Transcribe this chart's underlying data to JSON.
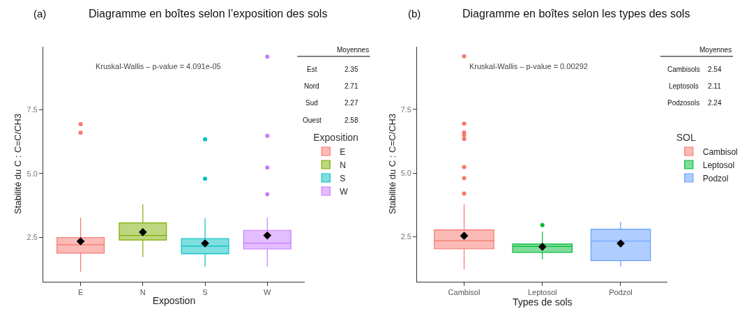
{
  "chart_data": [
    {
      "type": "box",
      "title": "Diagramme en boîtes selon l’exposition des sols",
      "xlabel": "Expostion",
      "ylabel": "Stabilité du C : C=C/CH3",
      "legend_title": "Exposition",
      "legend": "right",
      "categories": [
        "E",
        "N",
        "S",
        "W"
      ],
      "ylim": [
        0.78,
        9.98
      ],
      "yticks": [
        {
          "value": 2.5,
          "label": "2.5"
        },
        {
          "value": 5.0,
          "label": "5.0"
        },
        {
          "value": 7.5,
          "label": "7.5"
        }
      ],
      "series": [
        {
          "name": "E",
          "color": "#f8766d",
          "boxes": [
            {
              "low": 1.16,
              "q1": 1.89,
              "median": 2.22,
              "q3": 2.5,
              "high": 3.27,
              "mean": 2.35,
              "outliers": [
                6.94,
                6.6
              ]
            },
            null,
            null,
            null
          ]
        },
        {
          "name": "N",
          "color": "#7cae00",
          "boxes": [
            null,
            {
              "low": 1.73,
              "q1": 2.4,
              "median": 2.58,
              "q3": 3.07,
              "high": 3.8,
              "mean": 2.71
            },
            null,
            null
          ]
        },
        {
          "name": "S",
          "color": "#00bfc4",
          "boxes": [
            null,
            null,
            {
              "low": 1.36,
              "q1": 1.86,
              "median": 2.16,
              "q3": 2.46,
              "high": 3.25,
              "mean": 2.27,
              "outliers": [
                6.34,
                4.8
              ]
            },
            null
          ]
        },
        {
          "name": "W",
          "color": "#c77cff",
          "boxes": [
            null,
            null,
            null,
            {
              "low": 1.36,
              "q1": 2.05,
              "median": 2.28,
              "q3": 2.78,
              "high": 3.27,
              "mean": 2.58,
              "outliers": [
                9.58,
                6.48,
                5.24,
                4.19
              ]
            }
          ]
        }
      ],
      "annotations": [
        "(a)",
        "Kruskal-Wallis – p-value = 4.091e-05",
        "Moyennes",
        "Est",
        "2.35",
        "Nord",
        "2.71",
        "Sud",
        "2.27",
        "Ouest",
        "2.58"
      ]
    },
    {
      "type": "box",
      "title": "Diagramme en boîtes selon les types des sols",
      "xlabel": "Types de sols",
      "ylabel": "Stabilité du C : C=C/CH3",
      "legend_title": "SOL",
      "legend": "right",
      "categories": [
        "Cambisol",
        "Leptosol",
        "Podzol"
      ],
      "ylim": [
        0.75,
        9.97
      ],
      "yticks": [
        {
          "value": 2.5,
          "label": "2.5"
        },
        {
          "value": 5.0,
          "label": "5.0"
        },
        {
          "value": 7.5,
          "label": "7.5"
        }
      ],
      "series": [
        {
          "name": "Cambisol",
          "color": "#f8766d",
          "boxes": [
            {
              "low": 1.22,
              "q1": 2.03,
              "median": 2.34,
              "q3": 2.77,
              "high": 3.79,
              "mean": 2.54,
              "outliers": [
                9.58,
                6.94,
                6.59,
                6.48,
                6.34,
                5.24,
                4.8,
                4.2
              ]
            },
            null,
            null
          ]
        },
        {
          "name": "Leptosol",
          "color": "#00ba38",
          "boxes": [
            null,
            {
              "low": 1.62,
              "q1": 1.89,
              "median": 2.12,
              "q3": 2.22,
              "high": 2.7,
              "mean": 2.11,
              "outliers": [
                2.96
              ]
            },
            null
          ]
        },
        {
          "name": "Podzol",
          "color": "#619cff",
          "boxes": [
            null,
            null,
            {
              "low": 1.34,
              "q1": 1.57,
              "median": 2.33,
              "q3": 2.8,
              "high": 3.08,
              "mean": 2.24
            }
          ]
        }
      ],
      "annotations": [
        "(b)",
        "Kruskal-Wallis – p-value = 0.00292",
        "Moyennes",
        "Cambisols",
        "2.54",
        "Leptosols",
        "2.11",
        "Podzosols",
        "2.24"
      ]
    }
  ]
}
